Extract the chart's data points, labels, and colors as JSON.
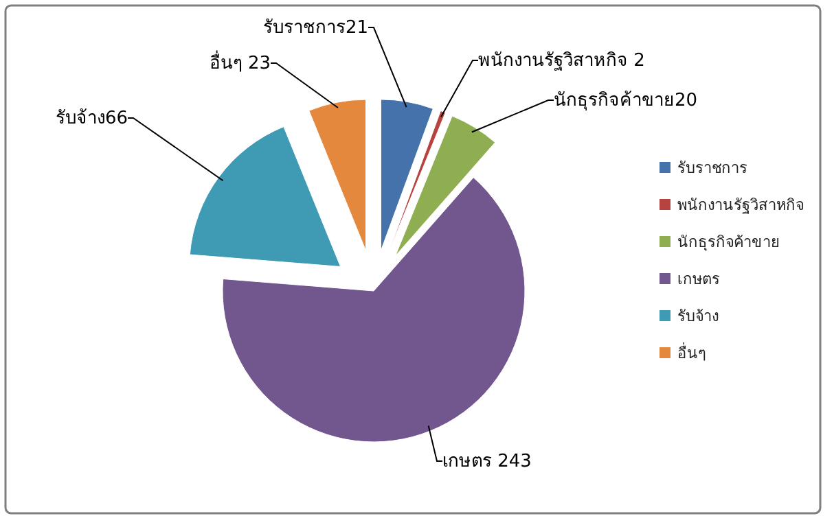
{
  "chart_data": {
    "type": "pie",
    "categories": [
      "รับราชการ",
      "พนักงานรัฐวิสาหกิจ",
      "นักธุรกิจค้าขาย",
      "เกษตร",
      "รับจ้าง",
      "อื่นๆ"
    ],
    "values": [
      21,
      2,
      20,
      243,
      66,
      23
    ],
    "colors": [
      "#4672ab",
      "#b7433f",
      "#8fae52",
      "#71578e",
      "#3e9bb3",
      "#e3883d"
    ],
    "value_labels": [
      "รับราชการ21",
      "พนักงานรัฐวิสาหกิจ 2",
      "นักธุรกิจค้าขาย20",
      "เกษตร 243",
      "รับจ้าง66",
      "อื่นๆ 23"
    ],
    "legend": "right"
  }
}
